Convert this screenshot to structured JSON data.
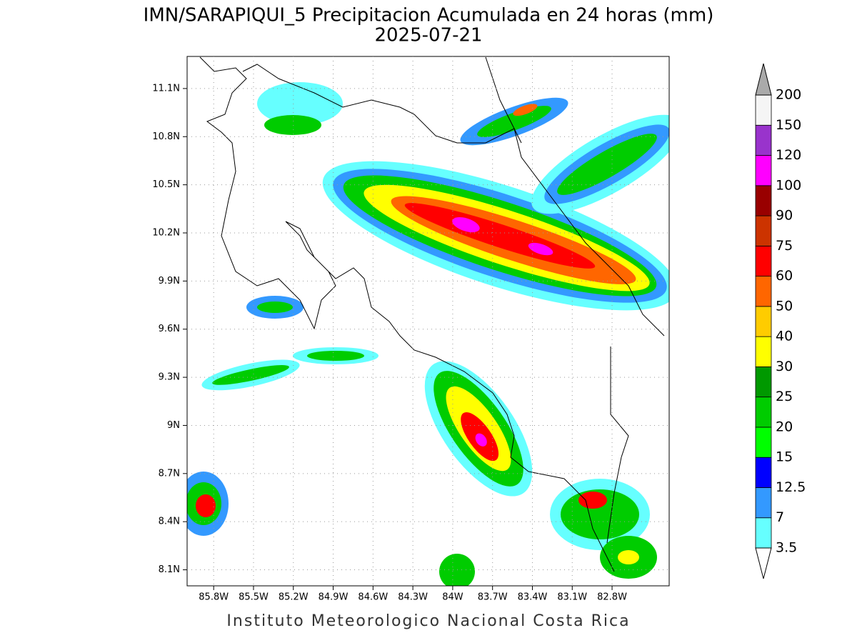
{
  "map": {
    "title": "IMN/SARAPIQUI_5 Precipitacion Acumulada en 24 horas (mm)",
    "subtitle": "2025-07-21",
    "footer": "Instituto Meteorologico Nacional Costa Rica",
    "xlim": [
      -86.0,
      -82.37
    ],
    "ylim": [
      8.0,
      11.3
    ],
    "xticks": [
      {
        "value": -85.8,
        "label": "85.8W"
      },
      {
        "value": -85.5,
        "label": "85.5W"
      },
      {
        "value": -85.2,
        "label": "85.2W"
      },
      {
        "value": -84.9,
        "label": "84.9W"
      },
      {
        "value": -84.6,
        "label": "84.6W"
      },
      {
        "value": -84.3,
        "label": "84.3W"
      },
      {
        "value": -84.0,
        "label": "84W"
      },
      {
        "value": -83.7,
        "label": "83.7W"
      },
      {
        "value": -83.4,
        "label": "83.4W"
      },
      {
        "value": -83.1,
        "label": "83.1W"
      },
      {
        "value": -82.8,
        "label": "82.8W"
      }
    ],
    "yticks": [
      {
        "value": 8.1,
        "label": "8.1N"
      },
      {
        "value": 8.4,
        "label": "8.4N"
      },
      {
        "value": 8.7,
        "label": "8.7N"
      },
      {
        "value": 9.0,
        "label": "9N"
      },
      {
        "value": 9.3,
        "label": "9.3N"
      },
      {
        "value": 9.6,
        "label": "9.6N"
      },
      {
        "value": 9.9,
        "label": "9.9N"
      },
      {
        "value": 10.2,
        "label": "10.2N"
      },
      {
        "value": 10.5,
        "label": "10.5N"
      },
      {
        "value": 10.8,
        "label": "10.8N"
      },
      {
        "value": 11.1,
        "label": "11.1N"
      }
    ],
    "grid": true,
    "colorbar": {
      "levels": [
        3.5,
        7,
        12.5,
        15,
        20,
        25,
        30,
        40,
        50,
        60,
        75,
        90,
        100,
        120,
        150,
        200
      ],
      "colors": [
        "#66ffff",
        "#3399ff",
        "#0000ff",
        "#00ff00",
        "#00cc00",
        "#009900",
        "#ffff00",
        "#ffcc00",
        "#ff6600",
        "#ff0000",
        "#cc3300",
        "#990000",
        "#ff00ff",
        "#9933cc",
        "#f5f5f5"
      ],
      "under_color": "#ffffff",
      "over_color": "#aaaaaa"
    }
  }
}
